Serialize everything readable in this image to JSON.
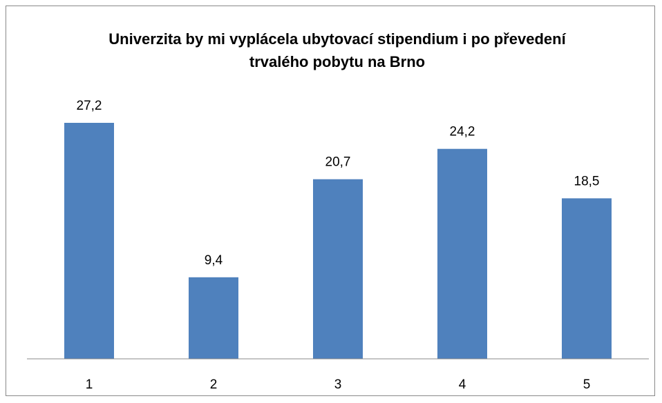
{
  "chart_data": {
    "type": "bar",
    "title": "Univerzita by mi vyplácela ubytovací stipendium i po převedení trvalého pobytu na Brno",
    "categories": [
      "1",
      "2",
      "3",
      "4",
      "5"
    ],
    "values": [
      27.2,
      9.4,
      20.7,
      24.2,
      18.5
    ],
    "value_labels": [
      "27,2",
      "9,4",
      "20,7",
      "24,2",
      "18,5"
    ],
    "color": "#4f81bd"
  }
}
